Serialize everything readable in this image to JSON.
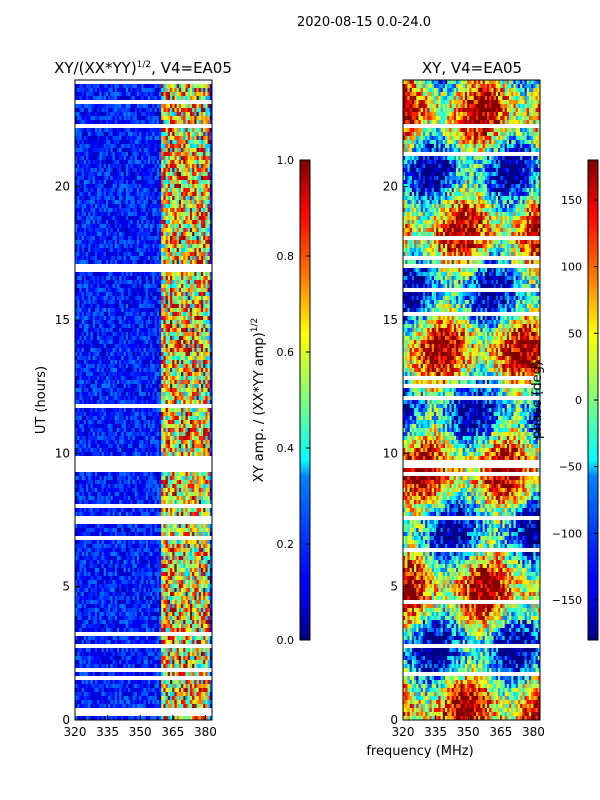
{
  "figure": {
    "suptitle": "2020-08-15 0.0-24.0"
  },
  "chart_data": [
    {
      "type": "heatmap",
      "title": "XY/(XX*YY)^1/2, V4=EA05",
      "title_parts": {
        "main": "XY/(XX*YY)",
        "sup": "1/2",
        "tail": ", V4=EA05"
      },
      "xlabel": "",
      "ylabel": "UT (hours)",
      "xlim": [
        320,
        383
      ],
      "ylim": [
        0,
        24
      ],
      "xticks": [
        "320",
        "335",
        "350",
        "365",
        "380"
      ],
      "xtick_values": [
        320,
        335,
        350,
        365,
        380
      ],
      "yticks": [
        "0",
        "5",
        "10",
        "15",
        "20"
      ],
      "ytick_values": [
        0,
        5,
        10,
        15,
        20
      ],
      "colormap": "jet",
      "colorbar": {
        "label": "XY amp. / (XX*YY amp)",
        "label_sup": "1/2",
        "range": [
          0.0,
          1.0
        ],
        "ticks": [
          "0.0",
          "0.2",
          "0.4",
          "0.6",
          "0.8",
          "1.0"
        ],
        "tick_values": [
          0.0,
          0.2,
          0.4,
          0.6,
          0.8,
          1.0
        ]
      },
      "regions": [
        {
          "description": "low amplitude band",
          "freq_range": [
            320,
            360
          ],
          "value_range": [
            0.05,
            0.25
          ]
        },
        {
          "description": "high amplitude band",
          "freq_range": [
            360,
            382
          ],
          "value_range": [
            0.3,
            1.0
          ]
        }
      ]
    },
    {
      "type": "heatmap",
      "title": "XY, V4=EA05",
      "xlabel": "frequency (MHz)",
      "ylabel": "",
      "xlim": [
        320,
        383
      ],
      "ylim": [
        0,
        24
      ],
      "xticks": [
        "320",
        "335",
        "350",
        "365",
        "380"
      ],
      "xtick_values": [
        320,
        335,
        350,
        365,
        380
      ],
      "yticks": [
        "0",
        "5",
        "10",
        "15",
        "20"
      ],
      "ytick_values": [
        0,
        5,
        10,
        15,
        20
      ],
      "colormap": "jet",
      "colorbar": {
        "label": "phase (deg)",
        "range": [
          -180,
          180
        ],
        "ticks": [
          "−150",
          "−100",
          "−50",
          "0",
          "50",
          "100",
          "150"
        ],
        "tick_values": [
          -150,
          -100,
          -50,
          0,
          50,
          100,
          150
        ]
      },
      "regions": [
        {
          "description": "phase spans full range",
          "freq_range": [
            320,
            382
          ],
          "value_range": [
            -180,
            180
          ]
        }
      ]
    }
  ]
}
